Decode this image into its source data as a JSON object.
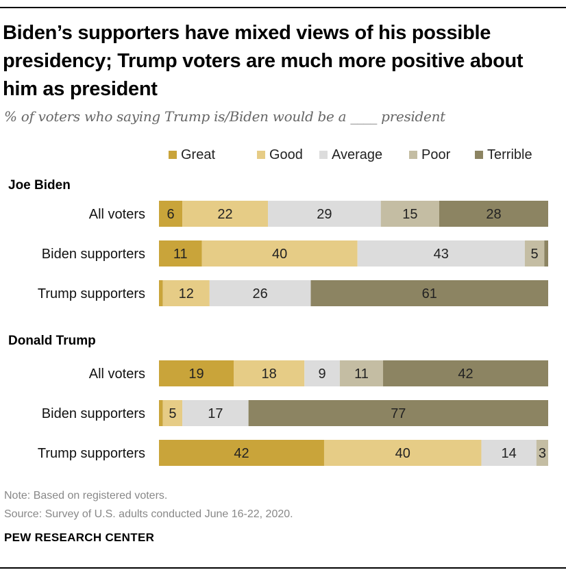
{
  "title": "Biden’s supporters have mixed views of his possible presidency; Trump voters are much more positive about him as president",
  "subtitle": "% of voters who saying Trump is/Biden would be a ____ president",
  "note": "Note: Based on registered voters.",
  "source": "Source: Survey of U.S. adults conducted June 16-22, 2020.",
  "brand": "PEW RESEARCH CENTER",
  "colors": {
    "Great": "#c9a43a",
    "Good": "#e6cc86",
    "Average": "#dcdcdc",
    "Poor": "#c4bda3",
    "Terrible": "#8c8462"
  },
  "chart_data": {
    "type": "bar",
    "orientation": "horizontal",
    "stacked": true,
    "legend_position": "top",
    "series_names": [
      "Great",
      "Good",
      "Average",
      "Poor",
      "Terrible"
    ],
    "groups": [
      {
        "name": "Joe Biden",
        "rows": [
          {
            "label": "All voters",
            "values": [
              6,
              22,
              29,
              15,
              28
            ]
          },
          {
            "label": "Biden supporters",
            "values": [
              11,
              40,
              43,
              5,
              1
            ]
          },
          {
            "label": "Trump supporters",
            "values": [
              1,
              12,
              26,
              null,
              61
            ]
          }
        ]
      },
      {
        "name": "Donald Trump",
        "rows": [
          {
            "label": "All voters",
            "values": [
              19,
              18,
              9,
              11,
              42
            ]
          },
          {
            "label": "Biden supporters",
            "values": [
              1,
              5,
              17,
              null,
              77
            ]
          },
          {
            "label": "Trump supporters",
            "values": [
              42,
              40,
              14,
              3,
              null
            ]
          }
        ]
      }
    ]
  }
}
